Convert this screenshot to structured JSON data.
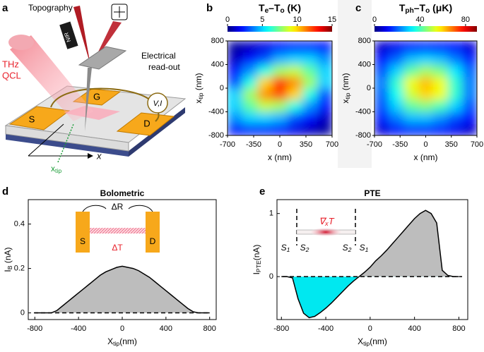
{
  "panel_labels": [
    "a",
    "b",
    "c",
    "d",
    "e"
  ],
  "schematic": {
    "topography": "Topography",
    "nir": "NIR",
    "thz": "THz",
    "qcl": "QCL",
    "electrical": "Electrical",
    "readout": "read-out",
    "vi": "V,I",
    "g": "G",
    "s": "S",
    "d": "D",
    "x": "x",
    "xtip": [
      "x",
      "tip"
    ]
  },
  "chart_data": [
    {
      "type": "heatmap",
      "title": [
        "T",
        "e",
        "–T",
        "o",
        " (K)"
      ],
      "colormap": "jet",
      "x": [
        -600,
        -400,
        -200,
        0,
        200,
        400,
        600
      ],
      "y": [
        -700,
        -500,
        -300,
        -100,
        100,
        300,
        500,
        700
      ],
      "z": [
        [
          2,
          2.5,
          2.5,
          2,
          1.5,
          1,
          0.5
        ],
        [
          4,
          5,
          5,
          4.5,
          3,
          2,
          1
        ],
        [
          5,
          7,
          8.5,
          8,
          6,
          4,
          2
        ],
        [
          5,
          8,
          11,
          12,
          10,
          6,
          3
        ],
        [
          3,
          6,
          10,
          12.5,
          11,
          8,
          5
        ],
        [
          2,
          4,
          6,
          8,
          8.5,
          7,
          5
        ],
        [
          1,
          2,
          3,
          4.5,
          5,
          5,
          4
        ],
        [
          0.5,
          1,
          1.5,
          2,
          2.5,
          2.5,
          2
        ]
      ],
      "clim": [
        0,
        15
      ],
      "cticks": [
        0,
        5,
        10,
        15
      ],
      "xlim": [
        -700,
        700
      ],
      "ylim": [
        -800,
        800
      ],
      "xticks": [
        -700,
        -350,
        0,
        350,
        700
      ],
      "yticks": [
        -800,
        -400,
        0,
        400,
        800
      ],
      "xlabel": "x (nm)",
      "ylabel": [
        "x",
        "tip",
        " (nm)"
      ]
    },
    {
      "type": "heatmap",
      "title": [
        "T",
        "ph",
        "–T",
        "o",
        " (μK)"
      ],
      "colormap": "jet",
      "x": [
        -600,
        -400,
        -200,
        0,
        200,
        400,
        600
      ],
      "y": [
        -700,
        -500,
        -300,
        -100,
        100,
        300,
        500,
        700
      ],
      "z": [
        [
          8,
          12,
          15,
          15,
          13,
          10,
          7
        ],
        [
          14,
          22,
          28,
          28,
          24,
          18,
          12
        ],
        [
          18,
          30,
          42,
          45,
          40,
          30,
          18
        ],
        [
          20,
          35,
          52,
          60,
          55,
          38,
          22
        ],
        [
          22,
          38,
          55,
          62,
          55,
          38,
          22
        ],
        [
          18,
          30,
          42,
          48,
          44,
          32,
          20
        ],
        [
          12,
          20,
          28,
          30,
          28,
          22,
          14
        ],
        [
          7,
          10,
          14,
          15,
          14,
          12,
          8
        ]
      ],
      "clim": [
        0,
        90
      ],
      "cticks": [
        0,
        40,
        80
      ],
      "xlim": [
        -700,
        700
      ],
      "ylim": [
        -800,
        800
      ],
      "xticks": [
        -700,
        -350,
        0,
        350,
        700
      ],
      "yticks": [
        -800,
        -400,
        0,
        400,
        800
      ],
      "xlabel": "x (nm)",
      "ylabel": [
        "x",
        "tip",
        " (nm)"
      ]
    },
    {
      "type": "area",
      "title": "Bolometric",
      "x": [
        -800,
        -750,
        -700,
        -650,
        -600,
        -550,
        -500,
        -450,
        -400,
        -350,
        -300,
        -250,
        -200,
        -150,
        -100,
        -50,
        0,
        50,
        100,
        150,
        200,
        250,
        300,
        350,
        400,
        450,
        500,
        550,
        600,
        650,
        700,
        750,
        800
      ],
      "values": [
        0,
        0,
        0,
        0,
        0.01,
        0.03,
        0.05,
        0.07,
        0.09,
        0.11,
        0.13,
        0.15,
        0.17,
        0.185,
        0.195,
        0.205,
        0.21,
        0.205,
        0.2,
        0.19,
        0.175,
        0.16,
        0.14,
        0.12,
        0.1,
        0.08,
        0.06,
        0.04,
        0.02,
        0.005,
        0,
        0,
        0
      ],
      "xlim": [
        -860,
        860
      ],
      "ylim": [
        -0.03,
        0.51
      ],
      "xticks": [
        -800,
        -400,
        0,
        400,
        800
      ],
      "yticks": [
        0,
        0.2,
        0.4
      ],
      "xlabel": [
        "X",
        "tip",
        "(nm)"
      ],
      "ylabel": [
        "I",
        "B",
        " (nA)"
      ],
      "color": "#000000",
      "fill_positive": "#bdbdbd",
      "fill_negative": "#00e8f0",
      "annotations": {
        "delta_r": "ΔR",
        "s": "S",
        "d": "D",
        "delta_t": "ΔT"
      }
    },
    {
      "type": "area",
      "title": "PTE",
      "x": [
        -800,
        -750,
        -700,
        -650,
        -600,
        -550,
        -500,
        -450,
        -400,
        -350,
        -300,
        -250,
        -200,
        -150,
        -100,
        -50,
        0,
        50,
        100,
        150,
        200,
        250,
        300,
        350,
        400,
        450,
        500,
        550,
        600,
        650,
        700,
        750,
        800
      ],
      "values": [
        0,
        0,
        -0.02,
        -0.35,
        -0.58,
        -0.65,
        -0.63,
        -0.57,
        -0.5,
        -0.42,
        -0.33,
        -0.24,
        -0.15,
        -0.07,
        0,
        0.07,
        0.15,
        0.25,
        0.33,
        0.42,
        0.52,
        0.62,
        0.72,
        0.82,
        0.92,
        1.0,
        1.05,
        1.0,
        0.85,
        0.1,
        0.02,
        0,
        0
      ],
      "xlim": [
        -840,
        880
      ],
      "ylim": [
        -0.68,
        1.22
      ],
      "xticks": [
        -800,
        -400,
        0,
        400,
        800
      ],
      "yticks": [
        0,
        1
      ],
      "xlabel": [
        "X",
        "tip",
        "(nm)"
      ],
      "ylabel": [
        "I",
        "PTE",
        "(nA)"
      ],
      "color": "#000000",
      "fill_positive": "#bdbdbd",
      "fill_negative": "#00e8f0",
      "annotations": {
        "grad": [
          "∇",
          "x",
          "T"
        ],
        "s1_left": [
          "S",
          "1"
        ],
        "s2_left": [
          "S",
          "2"
        ],
        "s2_right": [
          "S",
          "2"
        ],
        "s1_right": [
          "S",
          "1"
        ]
      }
    }
  ]
}
